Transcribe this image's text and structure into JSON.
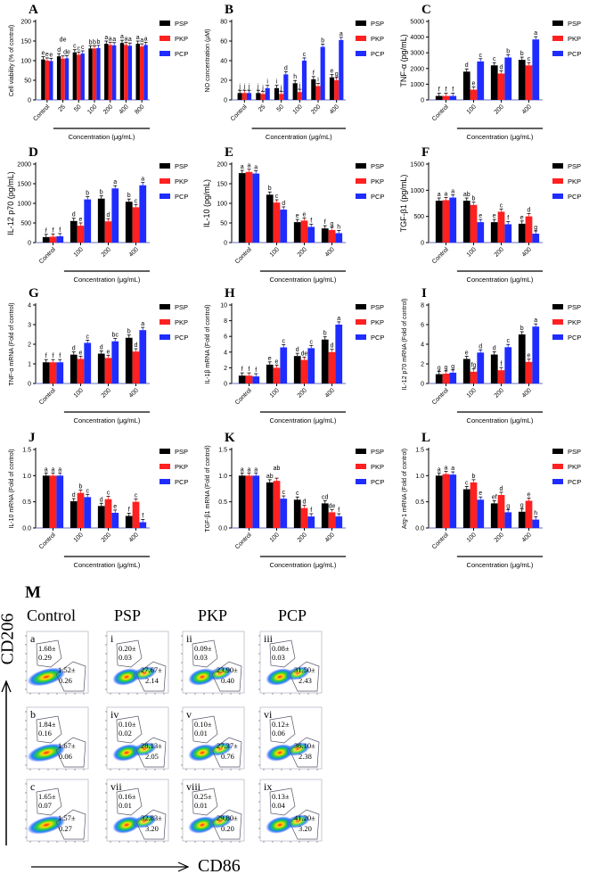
{
  "legend": [
    "PSP",
    "PKP",
    "PCP"
  ],
  "colors": {
    "PSP": "#000000",
    "PKP": "#ff2020",
    "PCP": "#1f2cff"
  },
  "xgroup_label": "Concentration (μg/mL)",
  "chart_data": [
    {
      "panel": "A",
      "type": "bar",
      "ylabel": "Cell viability (% of control)",
      "ylim": [
        0,
        200
      ],
      "ytick_step": 50,
      "categories": [
        "Control",
        "25",
        "50",
        "100",
        "200",
        "400",
        "800"
      ],
      "series": [
        {
          "name": "PSP",
          "values": [
            103,
            111,
            121,
            131,
            143,
            145,
            143
          ]
        },
        {
          "name": "PKP",
          "values": [
            100,
            105,
            115,
            131,
            140,
            140,
            136
          ]
        },
        {
          "name": "PCP",
          "values": [
            99,
            106,
            118,
            132,
            139,
            138,
            140
          ]
        }
      ],
      "letters": [
        [
          "e",
          "e",
          "e"
        ],
        [
          "d",
          "de",
          "de"
        ],
        [
          "c",
          "c",
          "c"
        ],
        [
          "b",
          "b",
          "b"
        ],
        [
          "a",
          "a",
          "a"
        ],
        [
          "a",
          "a",
          "a"
        ],
        [
          "a",
          "a",
          "a"
        ]
      ]
    },
    {
      "panel": "B",
      "type": "bar",
      "ylabel": "NO concentration (μM)",
      "ylim": [
        0,
        80
      ],
      "ytick_step": 20,
      "categories": [
        "Control",
        "25",
        "50",
        "100",
        "200",
        "400"
      ],
      "series": [
        {
          "name": "PSP",
          "values": [
            7,
            7,
            12,
            17,
            21,
            23
          ]
        },
        {
          "name": "PKP",
          "values": [
            7,
            6,
            6,
            8,
            14,
            20
          ]
        },
        {
          "name": "PCP",
          "values": [
            7,
            12,
            26,
            40,
            54,
            61
          ]
        }
      ],
      "letters": [
        [
          "j",
          "j",
          "j"
        ],
        [
          "j",
          "j",
          "i"
        ],
        [
          "i",
          "j",
          "d"
        ],
        [
          "h",
          "j",
          "c"
        ],
        [
          "f",
          "i",
          "b"
        ],
        [
          "e",
          "g",
          "a"
        ]
      ]
    },
    {
      "panel": "C",
      "type": "bar",
      "ylabel": "TNF-α (pg/mL)",
      "ylim": [
        0,
        5000
      ],
      "ytick_step": 1000,
      "categories": [
        "Control",
        "100",
        "200",
        "400"
      ],
      "series": [
        {
          "name": "PSP",
          "values": [
            250,
            1800,
            2200,
            2550
          ]
        },
        {
          "name": "PKP",
          "values": [
            250,
            650,
            1680,
            2200
          ]
        },
        {
          "name": "PCP",
          "values": [
            250,
            2450,
            2700,
            3850
          ]
        }
      ],
      "letters": [
        [
          "f",
          "f",
          "f"
        ],
        [
          "d",
          "e",
          "c"
        ],
        [
          "c",
          "d",
          "b"
        ],
        [
          "b",
          "c",
          "a"
        ]
      ]
    },
    {
      "panel": "D",
      "type": "bar",
      "ylabel": "IL-12 p70 (pg/mL)",
      "ylim": [
        0,
        2000
      ],
      "ytick_step": 500,
      "categories": [
        "Control",
        "100",
        "200",
        "400"
      ],
      "series": [
        {
          "name": "PSP",
          "values": [
            140,
            550,
            1120,
            1040
          ]
        },
        {
          "name": "PKP",
          "values": [
            150,
            430,
            540,
            900
          ]
        },
        {
          "name": "PCP",
          "values": [
            160,
            1100,
            1380,
            1460
          ]
        }
      ],
      "letters": [
        [
          "f",
          "f",
          "f"
        ],
        [
          "d",
          "e",
          "b"
        ],
        [
          "b",
          "d",
          "a"
        ],
        [
          "b",
          "c",
          "a"
        ]
      ]
    },
    {
      "panel": "E",
      "type": "bar",
      "ylabel": "IL-10 (pg/mL)",
      "ylim": [
        0,
        200
      ],
      "ytick_step": 50,
      "categories": [
        "Control",
        "100",
        "200",
        "400"
      ],
      "series": [
        {
          "name": "PSP",
          "values": [
            177,
            122,
            52,
            36
          ]
        },
        {
          "name": "PKP",
          "values": [
            180,
            102,
            56,
            32
          ]
        },
        {
          "name": "PCP",
          "values": [
            176,
            84,
            40,
            24
          ]
        }
      ],
      "letters": [
        [
          "a",
          "a",
          "a"
        ],
        [
          "b",
          "c",
          "d"
        ],
        [
          "e",
          "e",
          "f"
        ],
        [
          "f",
          "g",
          "h"
        ]
      ]
    },
    {
      "panel": "F",
      "type": "bar",
      "ylabel": "TGF-β1 (pg/mL)",
      "ylim": [
        0,
        1500
      ],
      "ytick_step": 500,
      "categories": [
        "Control",
        "100",
        "200",
        "400"
      ],
      "series": [
        {
          "name": "PSP",
          "values": [
            800,
            800,
            390,
            360
          ]
        },
        {
          "name": "PKP",
          "values": [
            810,
            720,
            590,
            500
          ]
        },
        {
          "name": "PCP",
          "values": [
            860,
            390,
            350,
            170
          ]
        }
      ],
      "letters": [
        [
          "a",
          "a",
          "a"
        ],
        [
          "ab",
          "b",
          "e"
        ],
        [
          "e",
          "c",
          "f"
        ],
        [
          "e",
          "d",
          "g"
        ]
      ]
    },
    {
      "panel": "G",
      "type": "bar",
      "ylabel": "TNF-α mRNA (Fold of control)",
      "ylim": [
        0,
        4
      ],
      "ytick_step": 1,
      "categories": [
        "Control",
        "100",
        "200",
        "400"
      ],
      "series": [
        {
          "name": "PSP",
          "values": [
            1.08,
            1.47,
            1.52,
            2.33
          ]
        },
        {
          "name": "PKP",
          "values": [
            1.08,
            1.25,
            1.3,
            1.63
          ]
        },
        {
          "name": "PCP",
          "values": [
            1.08,
            2.07,
            2.15,
            2.72
          ]
        }
      ],
      "letters": [
        [
          "f",
          "f",
          "f"
        ],
        [
          "d",
          "e",
          "c"
        ],
        [
          "d",
          "e",
          "bc"
        ],
        [
          "b",
          "d",
          "a"
        ]
      ]
    },
    {
      "panel": "H",
      "type": "bar",
      "ylabel": "IL-1β mRNA (Fold of control)",
      "ylim": [
        0,
        10
      ],
      "ytick_step": 2,
      "categories": [
        "Control",
        "100",
        "200",
        "400"
      ],
      "series": [
        {
          "name": "PSP",
          "values": [
            1.0,
            2.4,
            3.5,
            5.6
          ]
        },
        {
          "name": "PKP",
          "values": [
            1.0,
            2.0,
            3.0,
            4.0
          ]
        },
        {
          "name": "PCP",
          "values": [
            0.9,
            4.6,
            4.5,
            7.5
          ]
        }
      ],
      "letters": [
        [
          "f",
          "f",
          "f"
        ],
        [
          "e",
          "e",
          "c"
        ],
        [
          "d",
          "de",
          "c"
        ],
        [
          "b",
          "d",
          "a"
        ]
      ]
    },
    {
      "panel": "I",
      "type": "bar",
      "ylabel": "IL-12 p70 mRNA (Fold of control)",
      "ylim": [
        0,
        8
      ],
      "ytick_step": 2,
      "categories": [
        "Control",
        "100",
        "200",
        "400"
      ],
      "series": [
        {
          "name": "PSP",
          "values": [
            0.95,
            2.5,
            2.95,
            5.0
          ]
        },
        {
          "name": "PKP",
          "values": [
            1.0,
            1.2,
            1.35,
            2.2
          ]
        },
        {
          "name": "PCP",
          "values": [
            1.1,
            3.15,
            3.7,
            5.8
          ]
        }
      ],
      "letters": [
        [
          "g",
          "g",
          "g"
        ],
        [
          "e",
          "fg",
          "d"
        ],
        [
          "d",
          "f",
          "c"
        ],
        [
          "b",
          "e",
          "a"
        ]
      ]
    },
    {
      "panel": "J",
      "type": "bar",
      "ylabel": "IL-10 mRNA (Fold of control)",
      "ylim": [
        0,
        1.5
      ],
      "ytick_step": 0.5,
      "categories": [
        "Control",
        "100",
        "200",
        "400"
      ],
      "series": [
        {
          "name": "PSP",
          "values": [
            1.0,
            0.51,
            0.42,
            0.23
          ]
        },
        {
          "name": "PKP",
          "values": [
            1.0,
            0.67,
            0.55,
            0.5
          ]
        },
        {
          "name": "PCP",
          "values": [
            1.0,
            0.59,
            0.29,
            0.11
          ]
        }
      ],
      "letters": [
        [
          "a",
          "a",
          "a"
        ],
        [
          "d",
          "b",
          "c"
        ],
        [
          "d",
          "c",
          "e"
        ],
        [
          "f",
          "c",
          "f"
        ]
      ]
    },
    {
      "panel": "K",
      "type": "bar",
      "ylabel": "TGF-β1 mRNA (Fold of control)",
      "ylim": [
        0,
        1.5
      ],
      "ytick_step": 0.5,
      "categories": [
        "Control",
        "100",
        "200",
        "400"
      ],
      "series": [
        {
          "name": "PSP",
          "values": [
            1.0,
            0.87,
            0.54,
            0.47
          ]
        },
        {
          "name": "PKP",
          "values": [
            1.0,
            0.9,
            0.38,
            0.3
          ]
        },
        {
          "name": "PCP",
          "values": [
            1.0,
            0.56,
            0.22,
            0.22
          ]
        }
      ],
      "letters": [
        [
          "a",
          "a",
          "a"
        ],
        [
          "ab",
          "ab",
          "c"
        ],
        [
          "c",
          "d",
          "f"
        ],
        [
          "cd",
          "de",
          "f"
        ]
      ]
    },
    {
      "panel": "L",
      "type": "bar",
      "ylabel": "Arg-1 mRNA (Fold of control)",
      "ylim": [
        0,
        1.5
      ],
      "ytick_step": 0.5,
      "categories": [
        "Control",
        "100",
        "200",
        "400"
      ],
      "series": [
        {
          "name": "PSP",
          "values": [
            1.0,
            0.74,
            0.47,
            0.31
          ]
        },
        {
          "name": "PKP",
          "values": [
            1.03,
            0.87,
            0.63,
            0.52
          ]
        },
        {
          "name": "PCP",
          "values": [
            1.02,
            0.54,
            0.3,
            0.16
          ]
        }
      ],
      "letters": [
        [
          "a",
          "a",
          "a"
        ],
        [
          "c",
          "b",
          "e"
        ],
        [
          "ef",
          "d",
          "g"
        ],
        [
          "g",
          "e",
          "h"
        ]
      ]
    }
  ],
  "flow": {
    "panel": "M",
    "columns": [
      "Control",
      "PSP",
      "PKP",
      "PCP"
    ],
    "y_axis": "CD206",
    "x_axis": "CD86",
    "cells": [
      [
        {
          "label": "a",
          "upper": [
            "1.68±",
            "0.29"
          ],
          "lower": [
            "1.52±",
            "0.26"
          ]
        },
        {
          "label": "i",
          "upper": [
            "0.20±",
            "0.03"
          ],
          "lower": [
            "27.67±",
            "2.14"
          ]
        },
        {
          "label": "ii",
          "upper": [
            "0.09±",
            "0.03"
          ],
          "lower": [
            "23.90±",
            "0.40"
          ]
        },
        {
          "label": "iii",
          "upper": [
            "0.08±",
            "0.03"
          ],
          "lower": [
            "31.50±",
            "2.43"
          ]
        }
      ],
      [
        {
          "label": "b",
          "upper": [
            "1.84±",
            "0.16"
          ],
          "lower": [
            "1.67±",
            "0.06"
          ]
        },
        {
          "label": "iv",
          "upper": [
            "0.10±",
            "0.02"
          ],
          "lower": [
            "28.13±",
            "2.05"
          ]
        },
        {
          "label": "v",
          "upper": [
            "0.10±",
            "0.01"
          ],
          "lower": [
            "27.37±",
            "0.76"
          ]
        },
        {
          "label": "vi",
          "upper": [
            "0.12±",
            "0.06"
          ],
          "lower": [
            "36.10±",
            "2.38"
          ]
        }
      ],
      [
        {
          "label": "c",
          "upper": [
            "1.65±",
            "0.07"
          ],
          "lower": [
            "1.57±",
            "0.27"
          ]
        },
        {
          "label": "vii",
          "upper": [
            "0.16±",
            "0.01"
          ],
          "lower": [
            "32.83±",
            "3.20"
          ]
        },
        {
          "label": "viii",
          "upper": [
            "0.25±",
            "0.01"
          ],
          "lower": [
            "29.80±",
            "0.20"
          ]
        },
        {
          "label": "ix",
          "upper": [
            "0.13±",
            "0.04"
          ],
          "lower": [
            "41.20±",
            "3.20"
          ]
        }
      ]
    ]
  }
}
